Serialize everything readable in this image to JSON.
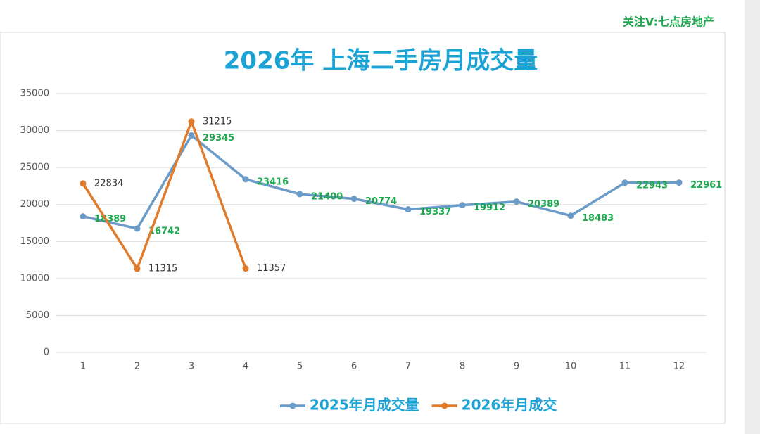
{
  "watermark": "关注V:七点房地产",
  "chart_data": {
    "type": "line",
    "title": "2026年 上海二手房月成交量",
    "categories": [
      "1",
      "2",
      "3",
      "4",
      "5",
      "6",
      "7",
      "8",
      "9",
      "10",
      "11",
      "12"
    ],
    "series": [
      {
        "name": "2025年月成交量",
        "color": "#6b9bc8",
        "label_color": "#1fa84f",
        "values": [
          18389,
          16742,
          29345,
          23416,
          21400,
          20774,
          19337,
          19912,
          20389,
          18483,
          22943,
          22961
        ]
      },
      {
        "name": "2026年月成交",
        "color": "#e07b2c",
        "label_color": "#333333",
        "values": [
          22834,
          11315,
          31215,
          11357,
          null,
          null,
          null,
          null,
          null,
          null,
          null,
          null
        ]
      }
    ],
    "ylim": [
      0,
      35000
    ],
    "yticks": [
      0,
      5000,
      10000,
      15000,
      20000,
      25000,
      30000,
      35000
    ],
    "grid": true,
    "legend": "bottom"
  }
}
